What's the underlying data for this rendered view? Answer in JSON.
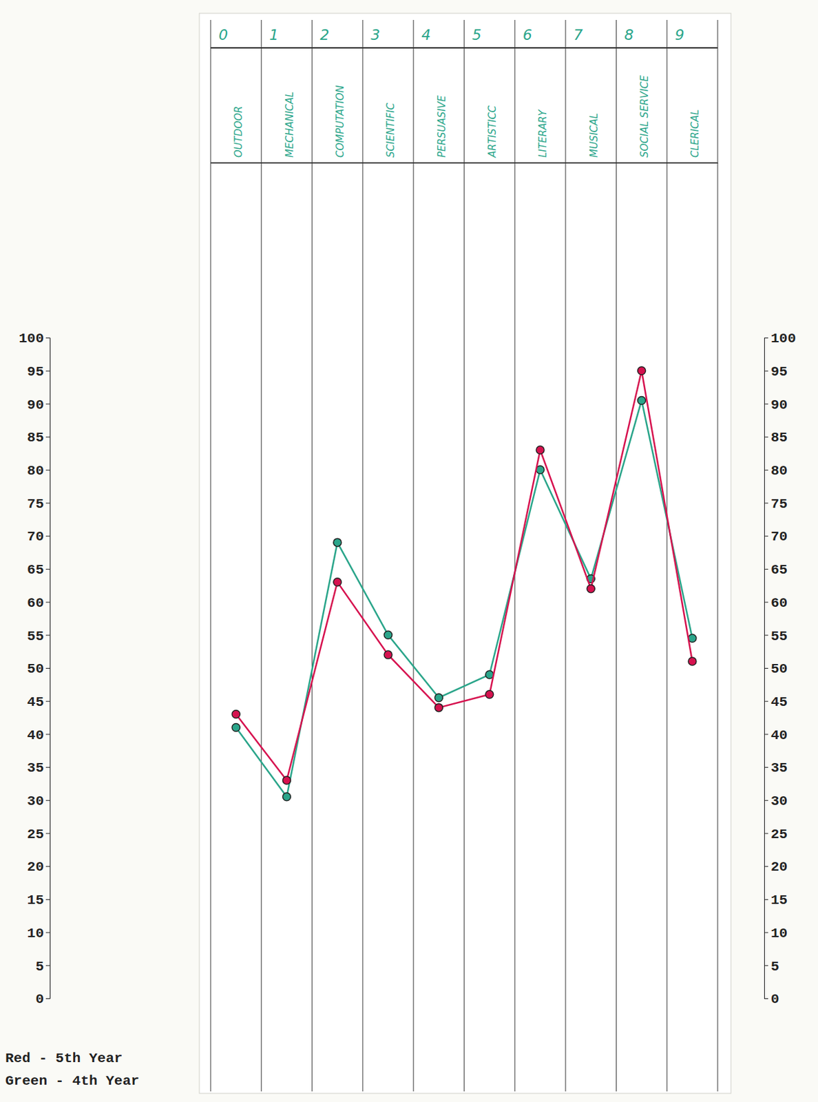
{
  "chart_data": {
    "type": "line",
    "category_numbers": [
      "0",
      "1",
      "2",
      "3",
      "4",
      "5",
      "6",
      "7",
      "8",
      "9"
    ],
    "categories": [
      "OUTDOOR",
      "MECHANICAL",
      "COMPUTATION",
      "SCIENTIFIC",
      "PERSUASIVE",
      "ARTISTICC",
      "LITERARY",
      "MUSICAL",
      "SOCIAL SERVICE",
      "CLERICAL"
    ],
    "series": [
      {
        "name": "Red - 5th Year",
        "color": "#d6124f",
        "marker": "circle",
        "values": [
          43,
          33,
          63,
          52,
          44,
          46,
          83,
          62,
          95,
          51
        ]
      },
      {
        "name": "Green - 4th Year",
        "color": "#2aa58a",
        "marker": "circle",
        "values": [
          41,
          30.5,
          69,
          55,
          45.5,
          49,
          80,
          63.5,
          90.5,
          54.5
        ]
      }
    ],
    "ylim": [
      0,
      100
    ],
    "yticks": [
      0,
      5,
      10,
      15,
      20,
      25,
      30,
      35,
      40,
      45,
      50,
      55,
      60,
      65,
      70,
      75,
      80,
      85,
      90,
      95,
      100
    ],
    "grid": false,
    "legend": "bottom-left"
  }
}
